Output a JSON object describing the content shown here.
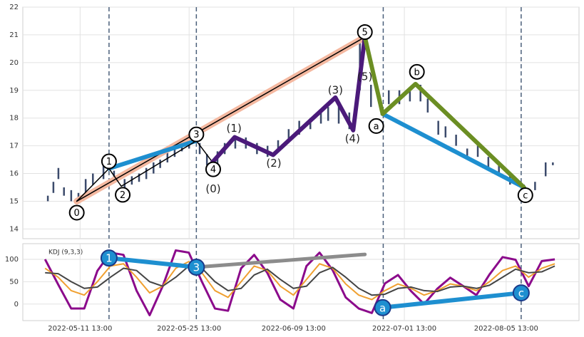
{
  "chart_data": [
    {
      "type": "candlestick",
      "xlim": [
        0,
        100
      ],
      "ylim": [
        13.65,
        22
      ],
      "yticks": [
        14,
        15,
        16,
        17,
        18,
        19,
        20,
        21,
        22
      ],
      "grid": true,
      "candle_color": "#3b4a6b",
      "candles": {
        "x": [
          4.5,
          5.5,
          6.4,
          7.4,
          8.7,
          10.0,
          11.3,
          12.6,
          14.5,
          16.4,
          18.3,
          19.6,
          20.9,
          22.2,
          23.5,
          24.7,
          26.0,
          27.3,
          28.6,
          29.9,
          31.8,
          33.1,
          35.0,
          36.3,
          38.2,
          40.1,
          42.1,
          44.0,
          45.9,
          47.8,
          49.7,
          51.7,
          53.6,
          54.9,
          56.8,
          58.7,
          60.6,
          62.6,
          64.5,
          65.8,
          67.7,
          69.6,
          71.5,
          72.8,
          74.7,
          76.0,
          77.9,
          79.9,
          81.8,
          83.7,
          85.6,
          87.6,
          90.1,
          92.1,
          94.0,
          95.3
        ],
        "low": [
          15.0,
          15.3,
          15.8,
          15.2,
          15.0,
          15.0,
          15.2,
          15.6,
          15.8,
          15.8,
          15.5,
          15.6,
          15.7,
          15.8,
          16.0,
          16.2,
          16.4,
          16.6,
          16.8,
          16.9,
          16.7,
          16.3,
          16.3,
          16.7,
          16.9,
          16.9,
          16.7,
          16.6,
          16.8,
          17.2,
          17.4,
          17.6,
          17.8,
          17.9,
          17.8,
          17.6,
          19.0,
          18.4,
          18.1,
          18.5,
          18.5,
          18.6,
          18.6,
          18.2,
          17.4,
          17.3,
          17.0,
          16.5,
          16.6,
          16.2,
          15.9,
          15.6,
          15.2,
          15.4,
          15.9,
          16.3
        ],
        "high": [
          15.2,
          15.7,
          16.2,
          15.5,
          15.4,
          15.3,
          15.8,
          16.0,
          16.4,
          16.1,
          15.8,
          15.9,
          16.0,
          16.2,
          16.4,
          16.5,
          16.8,
          17.0,
          17.1,
          17.3,
          17.1,
          16.7,
          16.8,
          17.1,
          17.3,
          17.3,
          17.1,
          17.0,
          17.2,
          17.6,
          17.9,
          18.0,
          18.3,
          18.4,
          18.5,
          18.2,
          20.9,
          19.2,
          18.5,
          19.0,
          19.0,
          19.1,
          19.2,
          18.7,
          17.9,
          17.7,
          17.4,
          16.9,
          17.0,
          16.6,
          16.3,
          16.0,
          15.6,
          15.7,
          16.4,
          16.4
        ]
      },
      "vlines": {
        "x": [
          15.5,
          31.2,
          64.8,
          89.6
        ],
        "color": "#4a5f7a"
      },
      "lines": [
        {
          "color": "#f4b8a0",
          "width": 9,
          "x": [
            9.7,
            61.5
          ],
          "y": [
            15.0,
            20.92
          ]
        },
        {
          "color": "#000000",
          "width": 1.5,
          "x": [
            9.7,
            61.5
          ],
          "y": [
            15.0,
            20.92
          ]
        },
        {
          "color": "#1e8fd0",
          "width": 6,
          "x": [
            15.5,
            31.2
          ],
          "y": [
            16.18,
            17.18
          ]
        },
        {
          "color": "#1e8fd0",
          "width": 6,
          "x": [
            64.7,
            90.1
          ],
          "y": [
            18.15,
            15.5
          ]
        },
        {
          "color": "#000000",
          "width": 1.5,
          "x": [
            9.7,
            15.5,
            17.7,
            31.2,
            34.1
          ],
          "y": [
            15.0,
            16.18,
            15.54,
            17.18,
            16.41
          ]
        },
        {
          "color": "#4b1a7a",
          "width": 6,
          "x": [
            34.1,
            38.1,
            45.0,
            56.2,
            59.4,
            61.5
          ],
          "y": [
            16.41,
            17.31,
            16.67,
            18.74,
            17.56,
            20.92
          ]
        },
        {
          "color": "#6b8e23",
          "width": 6,
          "x": [
            61.5,
            64.7,
            70.6,
            90.1
          ],
          "y": [
            20.92,
            18.15,
            19.23,
            15.5
          ]
        }
      ],
      "wave_labels": {
        "text": [
          "0",
          "1",
          "2",
          "3",
          "4",
          "5",
          "a",
          "b",
          "c"
        ],
        "x": [
          9.7,
          15.5,
          17.7,
          31.2,
          34.1,
          61.5,
          64.7,
          70.6,
          90.1
        ],
        "y": [
          15.0,
          16.18,
          15.54,
          17.18,
          16.41,
          20.92,
          18.15,
          19.23,
          15.5
        ]
      },
      "subwave_labels": {
        "text": [
          "(0)",
          "(1)",
          "(2)",
          "(3)",
          "(4)",
          "(5)"
        ],
        "x": [
          34.1,
          38.1,
          45.0,
          56.2,
          59.4,
          61.5
        ],
        "y": [
          16.41,
          17.31,
          16.67,
          18.74,
          17.56,
          20.92
        ]
      }
    },
    {
      "type": "line",
      "title": "KDJ (9,3,3)",
      "xlim": [
        0,
        100
      ],
      "ylim": [
        -37,
        135
      ],
      "yticks": [
        0,
        50,
        100
      ],
      "grid": true,
      "xticks": [
        {
          "value": 10.3,
          "label": "2022-05-11 13:00"
        },
        {
          "value": 29.9,
          "label": "2022-05-25 13:00"
        },
        {
          "value": 48.7,
          "label": "2022-06-09 13:00"
        },
        {
          "value": 68.6,
          "label": "2022-07-01 13:00"
        },
        {
          "value": 86.9,
          "label": "2022-08-05 13:00"
        }
      ],
      "x": [
        4,
        6.35,
        8.7,
        11.05,
        13.4,
        15.75,
        18.1,
        20.45,
        22.8,
        25.15,
        27.5,
        29.85,
        32.2,
        34.55,
        36.9,
        39.25,
        41.6,
        43.95,
        46.3,
        48.65,
        51,
        53.35,
        55.7,
        58.05,
        60.4,
        62.75,
        65.1,
        67.45,
        69.8,
        72.15,
        74.5,
        76.85,
        79.2,
        81.55,
        83.9,
        86.25,
        88.6,
        90.95,
        93.3,
        95.65
      ],
      "series": [
        {
          "color": "#8b0a8b",
          "width": 3,
          "values": [
            100,
            44,
            -10,
            -10,
            74,
            115,
            110,
            30,
            -25,
            40,
            120,
            115,
            50,
            -10,
            -15,
            80,
            110,
            70,
            10,
            -10,
            85,
            115,
            76,
            15,
            -10,
            -20,
            46,
            65,
            29,
            0,
            34,
            59,
            40,
            20,
            66,
            105,
            99,
            40,
            96,
            100
          ]
        },
        {
          "color": "#f0a030",
          "width": 2,
          "values": [
            80,
            60,
            30,
            20,
            50,
            85,
            90,
            60,
            25,
            40,
            80,
            95,
            70,
            30,
            15,
            50,
            85,
            75,
            40,
            20,
            55,
            90,
            80,
            45,
            20,
            10,
            30,
            45,
            35,
            20,
            30,
            45,
            40,
            30,
            50,
            75,
            85,
            60,
            80,
            90
          ]
        },
        {
          "color": "#444444",
          "width": 2,
          "values": [
            70,
            68,
            50,
            35,
            38,
            60,
            80,
            75,
            50,
            40,
            60,
            85,
            80,
            50,
            30,
            35,
            65,
            78,
            55,
            35,
            40,
            70,
            82,
            60,
            35,
            20,
            22,
            35,
            38,
            30,
            28,
            38,
            40,
            35,
            42,
            60,
            78,
            70,
            72,
            85
          ]
        }
      ],
      "vlines": {
        "x": [
          15.5,
          31.2,
          64.8,
          89.6
        ],
        "color": "#4a5f7a"
      },
      "lines": [
        {
          "color": "#1e8fd0",
          "width": 6,
          "x": [
            15.5,
            31.2
          ],
          "y": [
            103,
            82.5
          ]
        },
        {
          "color": "#8c8c8c",
          "width": 5,
          "x": [
            31.2,
            61.5
          ],
          "y": [
            82.5,
            111
          ]
        },
        {
          "color": "#1e8fd0",
          "width": 6,
          "x": [
            64.7,
            89.6
          ],
          "y": [
            -8,
            25
          ]
        }
      ],
      "point_labels": {
        "text": [
          "1",
          "3",
          "a",
          "c"
        ],
        "x": [
          15.5,
          31.2,
          64.7,
          89.6
        ],
        "y": [
          103,
          82.5,
          -8,
          25
        ]
      }
    }
  ]
}
